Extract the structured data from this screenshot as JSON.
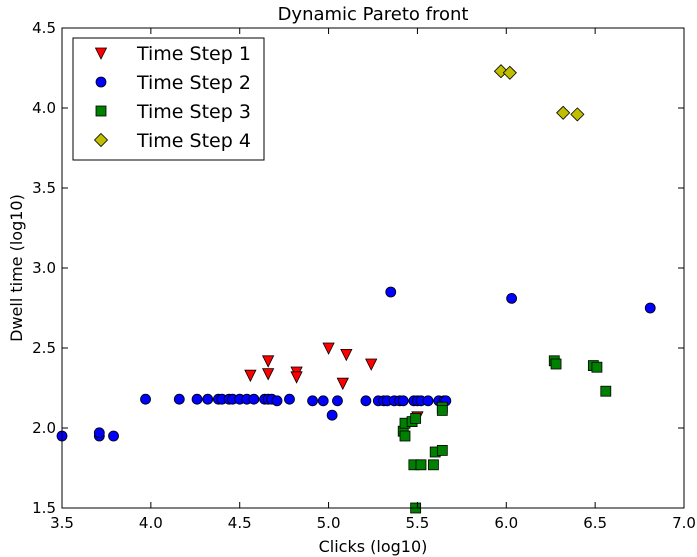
{
  "chart_data": {
    "type": "scatter",
    "title": "Dynamic Pareto front",
    "xlabel": "Clicks (log10)",
    "ylabel": "Dwell time (log10)",
    "xlim": [
      3.5,
      7.0
    ],
    "ylim": [
      1.5,
      4.5
    ],
    "xticks": [
      "3.5",
      "4.0",
      "4.5",
      "5.0",
      "5.5",
      "6.0",
      "6.5",
      "7.0"
    ],
    "yticks": [
      "1.5",
      "2.0",
      "2.5",
      "3.0",
      "3.5",
      "4.0",
      "4.5"
    ],
    "grid": false,
    "legend_position": "top-left",
    "series": [
      {
        "name": "Time Step 1",
        "marker": "triangle-down",
        "color": "#ff0000",
        "points": [
          [
            4.56,
            2.33
          ],
          [
            4.66,
            2.42
          ],
          [
            4.66,
            2.34
          ],
          [
            4.82,
            2.35
          ],
          [
            4.82,
            2.32
          ],
          [
            5.0,
            2.5
          ],
          [
            5.08,
            2.28
          ],
          [
            5.1,
            2.46
          ],
          [
            5.24,
            2.4
          ],
          [
            5.5,
            2.07
          ]
        ]
      },
      {
        "name": "Time Step 2",
        "marker": "circle",
        "color": "#0000ff",
        "points": [
          [
            3.5,
            1.95
          ],
          [
            3.71,
            1.95
          ],
          [
            3.71,
            1.97
          ],
          [
            3.79,
            1.95
          ],
          [
            3.97,
            2.18
          ],
          [
            4.16,
            2.18
          ],
          [
            4.26,
            2.18
          ],
          [
            4.32,
            2.18
          ],
          [
            4.38,
            2.18
          ],
          [
            4.4,
            2.18
          ],
          [
            4.44,
            2.18
          ],
          [
            4.46,
            2.18
          ],
          [
            4.5,
            2.18
          ],
          [
            4.54,
            2.18
          ],
          [
            4.58,
            2.18
          ],
          [
            4.64,
            2.18
          ],
          [
            4.66,
            2.18
          ],
          [
            4.68,
            2.18
          ],
          [
            4.71,
            2.17
          ],
          [
            4.78,
            2.18
          ],
          [
            4.91,
            2.17
          ],
          [
            4.97,
            2.17
          ],
          [
            5.02,
            2.08
          ],
          [
            5.05,
            2.17
          ],
          [
            5.21,
            2.17
          ],
          [
            5.28,
            2.17
          ],
          [
            5.31,
            2.17
          ],
          [
            5.33,
            2.17
          ],
          [
            5.37,
            2.17
          ],
          [
            5.4,
            2.17
          ],
          [
            5.42,
            2.17
          ],
          [
            5.48,
            2.17
          ],
          [
            5.5,
            2.17
          ],
          [
            5.52,
            2.17
          ],
          [
            5.56,
            2.17
          ],
          [
            5.62,
            2.17
          ],
          [
            5.65,
            2.17
          ],
          [
            5.66,
            2.17
          ],
          [
            5.35,
            2.85
          ],
          [
            6.03,
            2.81
          ],
          [
            6.81,
            2.75
          ]
        ]
      },
      {
        "name": "Time Step 3",
        "marker": "square",
        "color": "#008000",
        "points": [
          [
            5.42,
            1.98
          ],
          [
            5.43,
            1.95
          ],
          [
            5.43,
            2.03
          ],
          [
            5.47,
            2.04
          ],
          [
            5.49,
            2.06
          ],
          [
            5.48,
            1.77
          ],
          [
            5.52,
            1.77
          ],
          [
            5.49,
            1.5
          ],
          [
            5.59,
            1.77
          ],
          [
            5.6,
            1.85
          ],
          [
            5.64,
            1.86
          ],
          [
            5.64,
            2.13
          ],
          [
            5.64,
            2.11
          ],
          [
            6.27,
            2.42
          ],
          [
            6.28,
            2.4
          ],
          [
            6.49,
            2.39
          ],
          [
            6.51,
            2.38
          ],
          [
            6.56,
            2.23
          ]
        ]
      },
      {
        "name": "Time Step 4",
        "marker": "diamond",
        "color": "#bfbf00",
        "points": [
          [
            5.97,
            4.23
          ],
          [
            6.02,
            4.22
          ],
          [
            6.32,
            3.97
          ],
          [
            6.4,
            3.96
          ]
        ]
      }
    ]
  }
}
